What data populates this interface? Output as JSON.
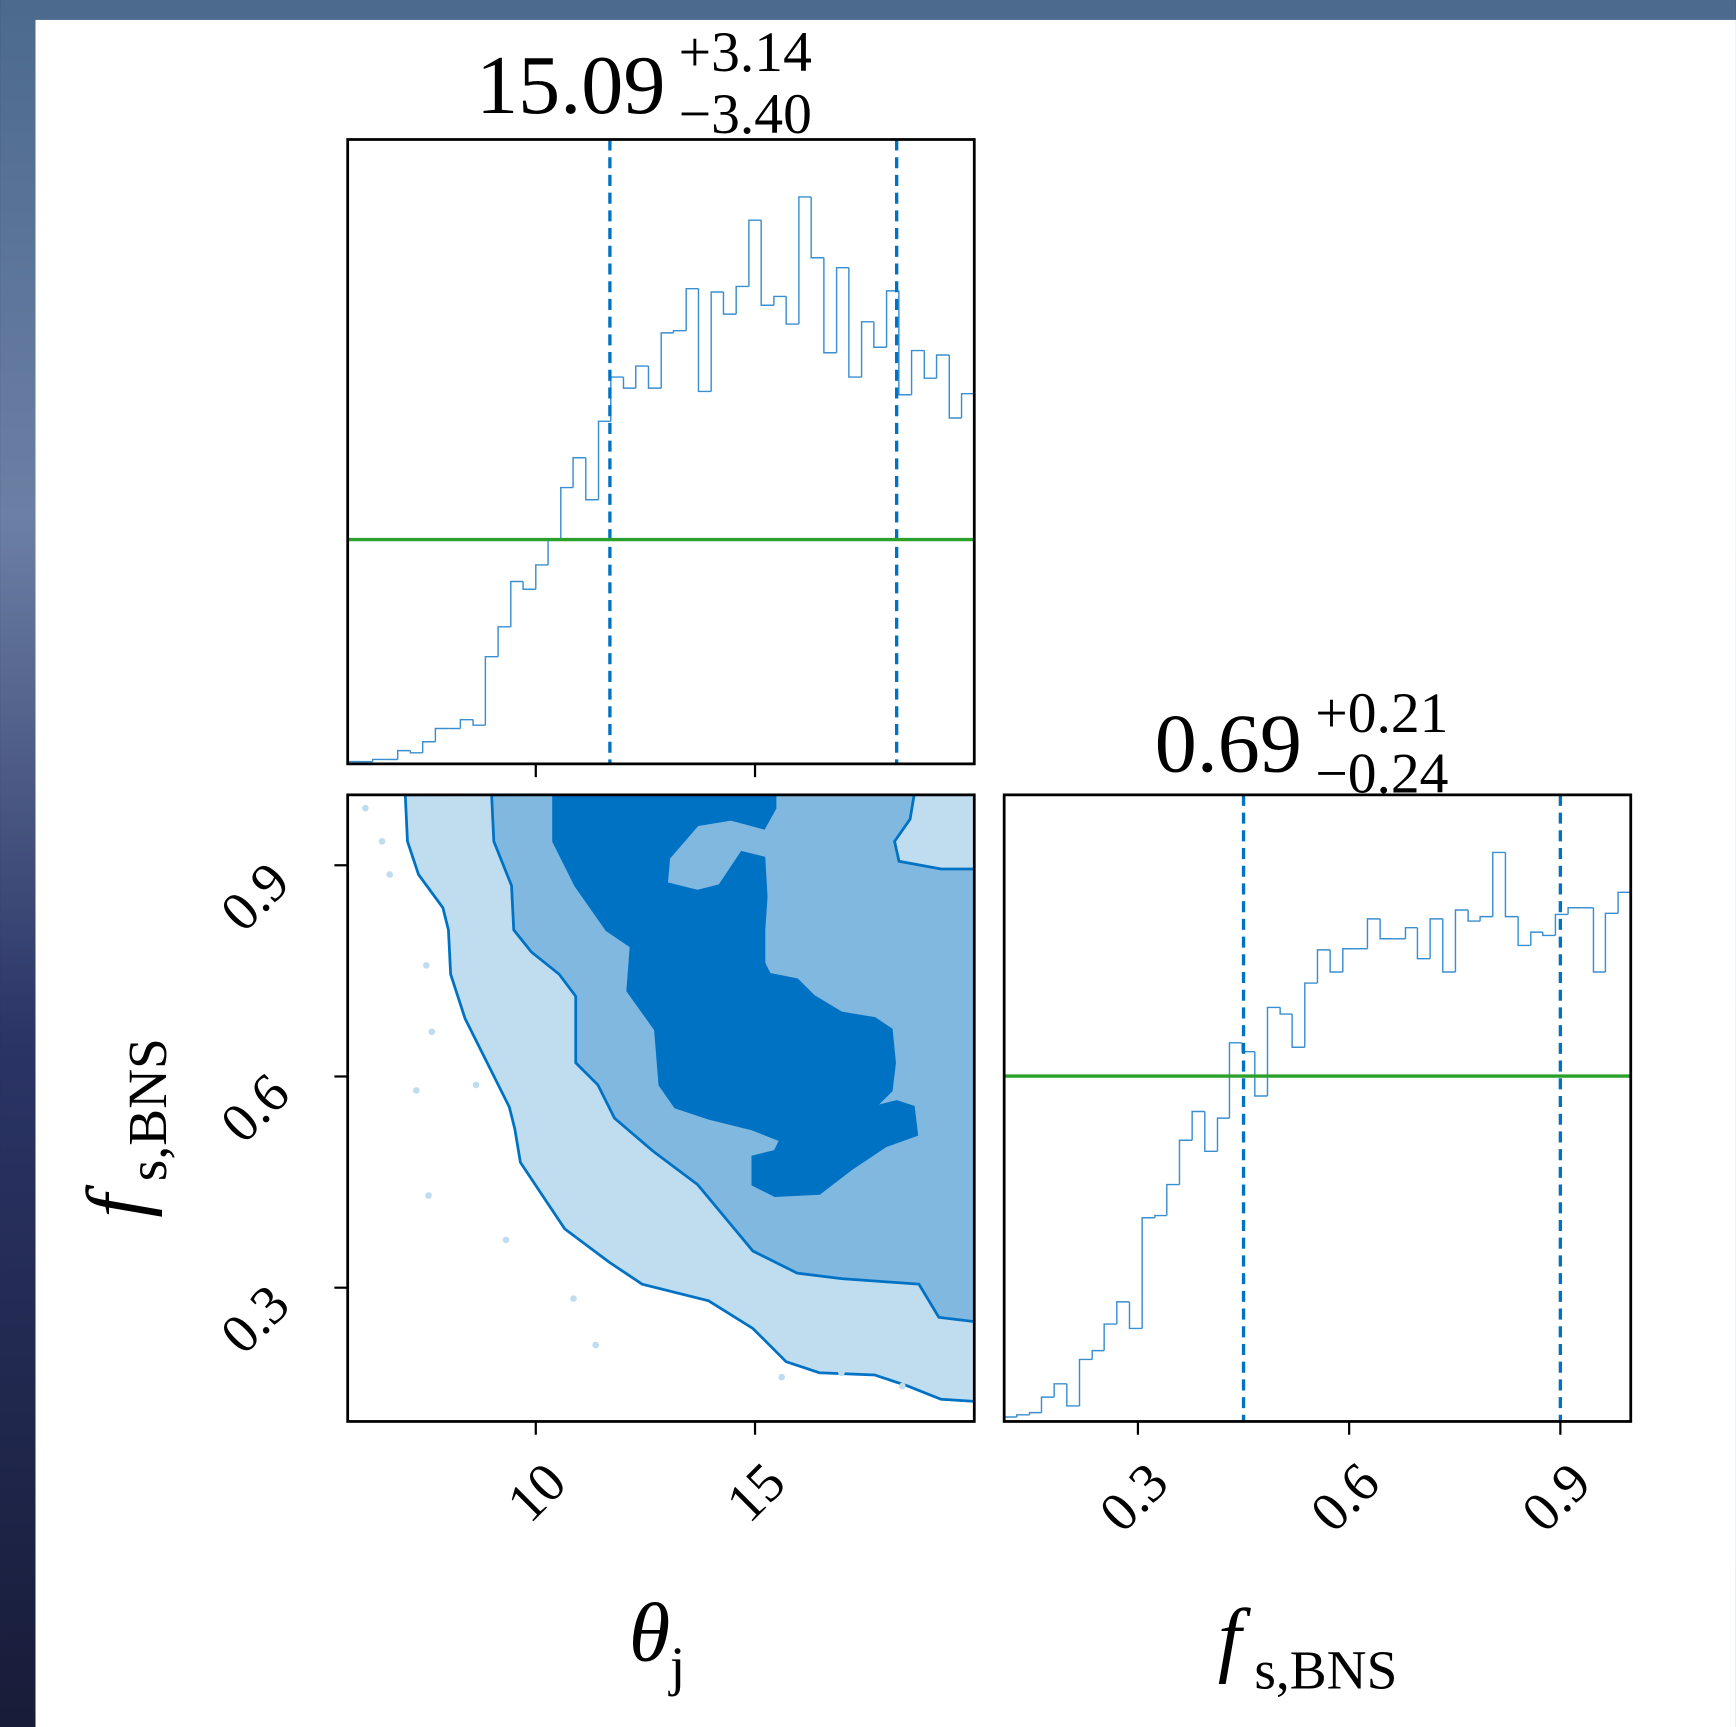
{
  "chart_data": [
    {
      "type": "histogram",
      "title": "15.09",
      "title_sup": "+3.14",
      "title_sub": "−3.40",
      "bins": [
        5.71,
        6.0,
        6.28,
        6.57,
        6.85,
        7.14,
        7.42,
        7.71,
        8.0,
        8.28,
        8.57,
        8.85,
        9.14,
        9.43,
        9.71,
        10.0,
        10.28,
        10.57,
        10.85,
        11.14,
        11.43,
        11.71,
        12.0,
        12.28,
        12.57,
        12.86,
        13.14,
        13.43,
        13.71,
        14.0,
        14.28,
        14.57,
        14.86,
        15.14,
        15.43,
        15.71,
        16.0,
        16.28,
        16.57,
        16.86,
        17.14,
        17.43,
        17.71,
        18.0,
        18.28,
        18.57,
        18.86,
        19.14,
        19.43,
        19.71,
        20.0
      ],
      "values": [
        2,
        2,
        4,
        4,
        12,
        10,
        20,
        32,
        32,
        40,
        35,
        97,
        124,
        165,
        158,
        180,
        203,
        250,
        277,
        239,
        310,
        350,
        340,
        360,
        340,
        390,
        392,
        430,
        337,
        427,
        407,
        432,
        492,
        415,
        423,
        398,
        513,
        458,
        372,
        449,
        350,
        400,
        377,
        428,
        334,
        374,
        349,
        370,
        313,
        335
      ],
      "color": "#3a8fd0",
      "quantiles": [
        11.69,
        18.23
      ],
      "quantile_color": "#0072c4",
      "prior": 203,
      "prior_color": "#2ca02c",
      "xlim": [
        5.71,
        20
      ],
      "ylim": [
        0,
        565
      ],
      "xticks": [
        10,
        15
      ],
      "xtick_labels": false
    },
    {
      "type": "contour",
      "xlim": [
        5.71,
        20
      ],
      "ylim": [
        0.11,
        1.0
      ],
      "xticks": [
        10,
        15
      ],
      "yticks": [
        0.3,
        0.6,
        0.9
      ],
      "xtick_labels": true,
      "xlabel": "θ",
      "xlabel_sub": "j",
      "ylabel": "f",
      "ylabel_sub": "s,BNS"
    },
    {
      "type": "histogram",
      "title": "0.69",
      "title_sup": "+0.21",
      "title_sub": "−0.24",
      "bins": [
        0.11,
        0.128,
        0.146,
        0.163,
        0.181,
        0.199,
        0.217,
        0.235,
        0.252,
        0.27,
        0.288,
        0.306,
        0.324,
        0.341,
        0.359,
        0.377,
        0.395,
        0.413,
        0.43,
        0.448,
        0.466,
        0.484,
        0.502,
        0.519,
        0.537,
        0.555,
        0.573,
        0.591,
        0.608,
        0.626,
        0.644,
        0.662,
        0.68,
        0.697,
        0.715,
        0.733,
        0.751,
        0.769,
        0.786,
        0.804,
        0.822,
        0.84,
        0.858,
        0.875,
        0.893,
        0.911,
        0.929,
        0.947,
        0.964,
        0.982,
        1.0
      ],
      "values": [
        4,
        6,
        8,
        22,
        34,
        14,
        56,
        64,
        88,
        108,
        84,
        184,
        186,
        214,
        254,
        280,
        244,
        274,
        342,
        334,
        294,
        374,
        368,
        338,
        396,
        426,
        406,
        427,
        427,
        454,
        436,
        436,
        446,
        418,
        454,
        406,
        462,
        452,
        456,
        514,
        456,
        430,
        442,
        439,
        458,
        464,
        464,
        406,
        459,
        478
      ],
      "color": "#3a8fd0",
      "quantiles": [
        0.45,
        0.9
      ],
      "quantile_color": "#0072c4",
      "prior": 312,
      "prior_color": "#2ca02c",
      "xlim": [
        0.11,
        1.0
      ],
      "ylim": [
        0,
        566
      ],
      "xticks": [
        0.3,
        0.6,
        0.9
      ],
      "xtick_labels": true,
      "xlabel": "f",
      "xlabel_sub": "s,BNS"
    }
  ]
}
